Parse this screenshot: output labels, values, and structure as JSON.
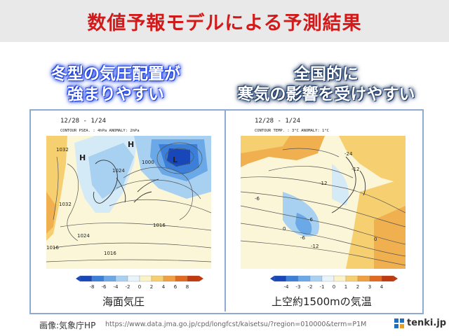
{
  "header": {
    "title": "数値予報モデルによる予測結果"
  },
  "left_panel": {
    "caption_line1": "冬型の気圧配置が",
    "caption_line2": "強まりやすい",
    "date": "12/28 - 1/24",
    "contour_label": "CONTOUR PSEA. :   4hPa   ANOMALY:  2hPa",
    "labels": [
      "1032",
      "1032",
      "1024",
      "1024",
      "1016",
      "1016",
      "1016",
      "1000",
      "1032",
      "H",
      "H",
      "L"
    ],
    "colorbar_ticks": [
      "-8",
      "-6",
      "-4",
      "-2",
      "0",
      "2",
      "4",
      "6",
      "8"
    ],
    "colorbar_colors": [
      "#1747b8",
      "#3b7fd8",
      "#6aa8e8",
      "#a8d0f0",
      "#e8f4fa",
      "#fbf3c8",
      "#f6d070",
      "#f0a040",
      "#e06a20",
      "#c03a10"
    ],
    "bottom_label": "海面気圧"
  },
  "right_panel": {
    "caption_line1": "全国的に",
    "caption_line2": "寒気の影響を受けやすい",
    "date": "12/28 - 1/24",
    "contour_label": "CONTOUR TEMP. :   3°C    ANOMALY:   1°C",
    "labels": [
      "-24",
      "-12",
      "-12",
      "-6",
      "-6",
      "-6",
      "0",
      "0",
      "-12"
    ],
    "colorbar_ticks": [
      "-4",
      "-3",
      "-2",
      "-1",
      "0",
      "1",
      "2",
      "3",
      "4"
    ],
    "colorbar_colors": [
      "#1747b8",
      "#3b7fd8",
      "#6aa8e8",
      "#a8d0f0",
      "#e8f4fa",
      "#fbf3c8",
      "#f6d070",
      "#f0a040",
      "#e06a20",
      "#c03a10"
    ],
    "bottom_label": "上空約1500mの気温"
  },
  "footer": {
    "source": "画像:気象庁HP",
    "url": "https://www.data.jma.go.jp/cpd/longfcst/kaisetsu/?region=010000&term=P1M",
    "logo_text": "tenki.jp"
  }
}
